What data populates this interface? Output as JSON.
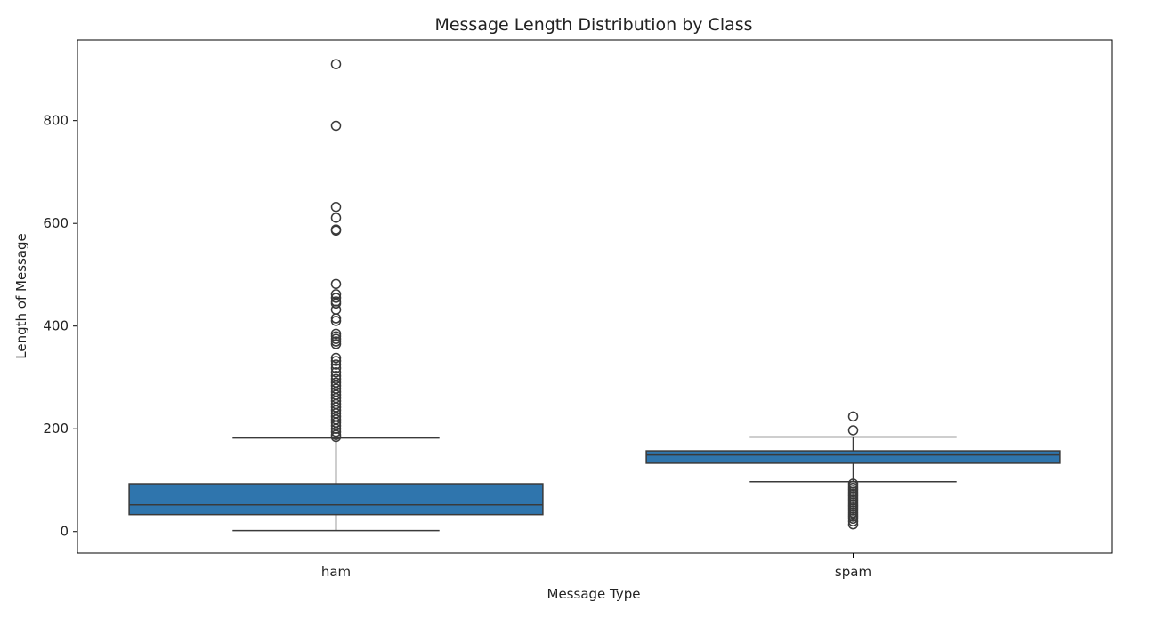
{
  "chart_data": {
    "type": "box",
    "title": "Message Length Distribution by Class",
    "xlabel": "Message Type",
    "ylabel": "Length of Message",
    "ylim": [
      -42,
      957
    ],
    "yticks": [
      0,
      200,
      400,
      600,
      800
    ],
    "grid": false,
    "colors": {
      "box_fill": "#2f75ad",
      "line": "#3a3a3a",
      "axes": "#000000"
    },
    "boxes": [
      {
        "category": "ham",
        "whisker_low": 2,
        "q1": 33,
        "median": 52,
        "q3": 93,
        "whisker_high": 182,
        "outliers": [
          910,
          790,
          632,
          611,
          588,
          586,
          482,
          462,
          455,
          448,
          444,
          432,
          415,
          410,
          385,
          380,
          375,
          370,
          365,
          338,
          332,
          325,
          318,
          310,
          303,
          297,
          290,
          284,
          278,
          272,
          266,
          260,
          254,
          248,
          242,
          236,
          230,
          224,
          218,
          212,
          206,
          200,
          194,
          188,
          184
        ]
      },
      {
        "category": "spam",
        "whisker_low": 97,
        "q1": 133,
        "median": 149,
        "q3": 157,
        "whisker_high": 184,
        "outliers": [
          224,
          197,
          93,
          89,
          85,
          81,
          77,
          73,
          69,
          65,
          61,
          57,
          53,
          49,
          45,
          41,
          37,
          33,
          29,
          25,
          20,
          14
        ]
      }
    ]
  }
}
